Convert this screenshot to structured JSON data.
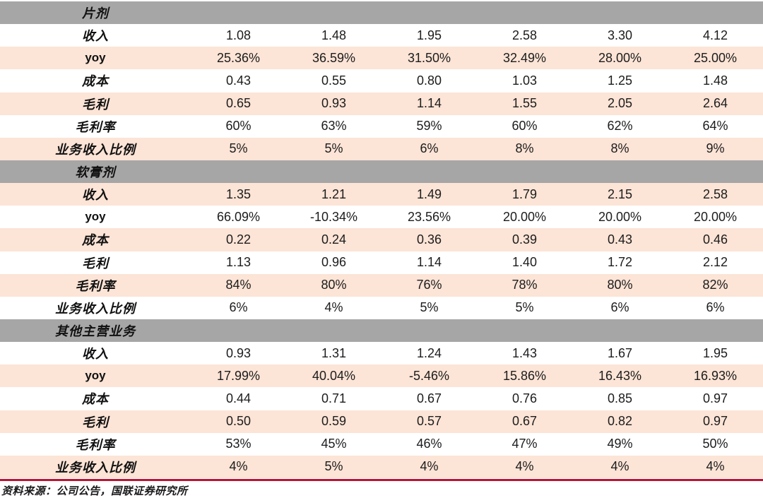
{
  "colors": {
    "section_header_bg": "#a6a6a6",
    "stripe_pink": "#fce4d6",
    "stripe_white": "#ffffff",
    "bottom_rule": "#b91434",
    "text": "#1c1c1c"
  },
  "table": {
    "sections": [
      {
        "title": "片剂",
        "rows": [
          {
            "label": "收入",
            "values": [
              "1.08",
              "1.48",
              "1.95",
              "2.58",
              "3.30",
              "4.12"
            ]
          },
          {
            "label": "yoy",
            "values": [
              "25.36%",
              "36.59%",
              "31.50%",
              "32.49%",
              "28.00%",
              "25.00%"
            ]
          },
          {
            "label": "成本",
            "values": [
              "0.43",
              "0.55",
              "0.80",
              "1.03",
              "1.25",
              "1.48"
            ]
          },
          {
            "label": "毛利",
            "values": [
              "0.65",
              "0.93",
              "1.14",
              "1.55",
              "2.05",
              "2.64"
            ]
          },
          {
            "label": "毛利率",
            "values": [
              "60%",
              "63%",
              "59%",
              "60%",
              "62%",
              "64%"
            ]
          },
          {
            "label": "业务收入比例",
            "values": [
              "5%",
              "5%",
              "6%",
              "8%",
              "8%",
              "9%"
            ]
          }
        ]
      },
      {
        "title": "软膏剂",
        "rows": [
          {
            "label": "收入",
            "values": [
              "1.35",
              "1.21",
              "1.49",
              "1.79",
              "2.15",
              "2.58"
            ]
          },
          {
            "label": "yoy",
            "values": [
              "66.09%",
              "-10.34%",
              "23.56%",
              "20.00%",
              "20.00%",
              "20.00%"
            ]
          },
          {
            "label": "成本",
            "values": [
              "0.22",
              "0.24",
              "0.36",
              "0.39",
              "0.43",
              "0.46"
            ]
          },
          {
            "label": "毛利",
            "values": [
              "1.13",
              "0.96",
              "1.14",
              "1.40",
              "1.72",
              "2.12"
            ]
          },
          {
            "label": "毛利率",
            "values": [
              "84%",
              "80%",
              "76%",
              "78%",
              "80%",
              "82%"
            ]
          },
          {
            "label": "业务收入比例",
            "values": [
              "6%",
              "4%",
              "5%",
              "5%",
              "6%",
              "6%"
            ]
          }
        ]
      },
      {
        "title": "其他主营业务",
        "rows": [
          {
            "label": "收入",
            "values": [
              "0.93",
              "1.31",
              "1.24",
              "1.43",
              "1.67",
              "1.95"
            ]
          },
          {
            "label": "yoy",
            "values": [
              "17.99%",
              "40.04%",
              "-5.46%",
              "15.86%",
              "16.43%",
              "16.93%"
            ]
          },
          {
            "label": "成本",
            "values": [
              "0.44",
              "0.71",
              "0.67",
              "0.76",
              "0.85",
              "0.97"
            ]
          },
          {
            "label": "毛利",
            "values": [
              "0.50",
              "0.59",
              "0.57",
              "0.67",
              "0.82",
              "0.97"
            ]
          },
          {
            "label": "毛利率",
            "values": [
              "53%",
              "45%",
              "46%",
              "47%",
              "49%",
              "50%"
            ]
          },
          {
            "label": "业务收入比例",
            "values": [
              "4%",
              "5%",
              "4%",
              "4%",
              "4%",
              "4%"
            ]
          }
        ]
      }
    ],
    "source_note": "资料来源：公司公告，国联证券研究所"
  }
}
